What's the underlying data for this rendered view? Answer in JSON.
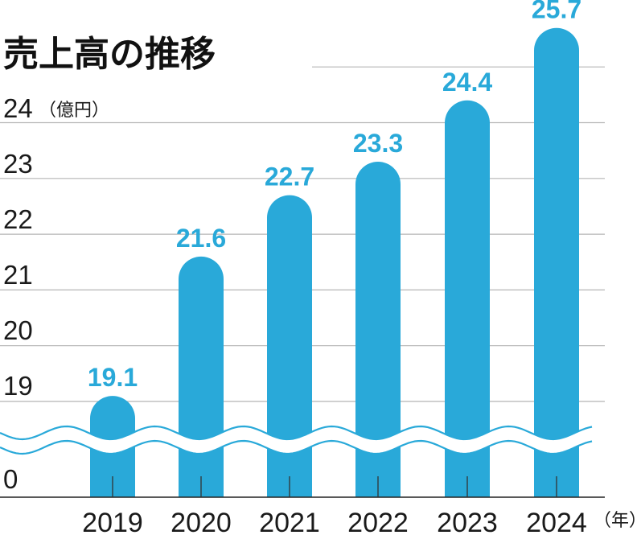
{
  "chart_data": {
    "type": "bar",
    "title": "売上高の推移",
    "categories": [
      "2019",
      "2020",
      "2021",
      "2022",
      "2023",
      "2024"
    ],
    "values": [
      19.1,
      21.6,
      22.7,
      23.3,
      24.4,
      25.7
    ],
    "y_unit": "（億円）",
    "x_unit": "（年）",
    "y_ticks": [
      "24",
      "23",
      "22",
      "21",
      "20",
      "19",
      "0"
    ],
    "ylim": [
      18.5,
      25.7
    ],
    "axis_break": true,
    "grid": true,
    "bar_color": "#29a9d9"
  }
}
